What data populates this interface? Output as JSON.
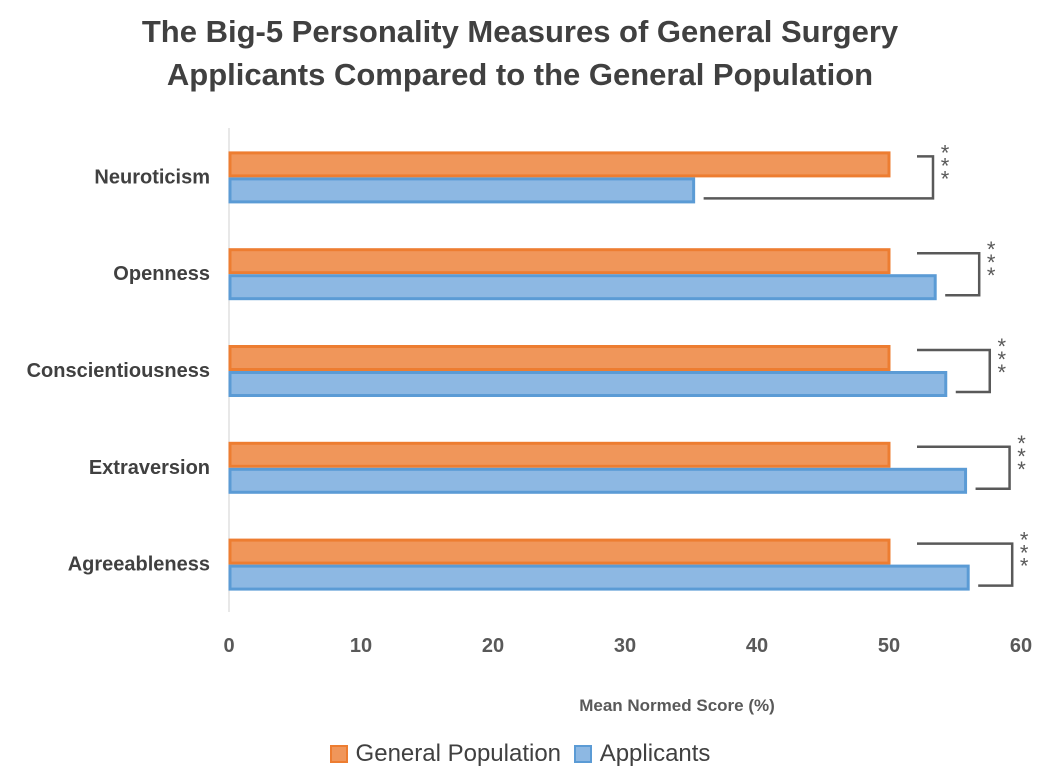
{
  "chart_data": {
    "type": "bar",
    "orientation": "horizontal",
    "title_lines": [
      "The Big-5 Personality Measures of General Surgery",
      "Applicants Compared to the General Population"
    ],
    "categories": [
      "Neuroticism",
      "Openness",
      "Conscientiousness",
      "Extraversion",
      "Agreeableness"
    ],
    "series": [
      {
        "name": "General Population",
        "values": [
          50,
          50,
          50,
          50,
          50
        ],
        "color": "#F0965A",
        "border": "#ED7D31"
      },
      {
        "name": "Applicants",
        "values": [
          35.2,
          53.5,
          54.3,
          55.8,
          56.0
        ],
        "color": "#8DB8E3",
        "border": "#5B9BD5"
      }
    ],
    "xlabel": "Mean Normed Score (%)",
    "xlim": [
      0,
      60
    ],
    "xticks": [
      "0",
      "10",
      "20",
      "30",
      "40",
      "50",
      "60"
    ],
    "significance": [
      "***",
      "***",
      "***",
      "***",
      "***"
    ],
    "grid": false,
    "legend_position": "bottom"
  }
}
